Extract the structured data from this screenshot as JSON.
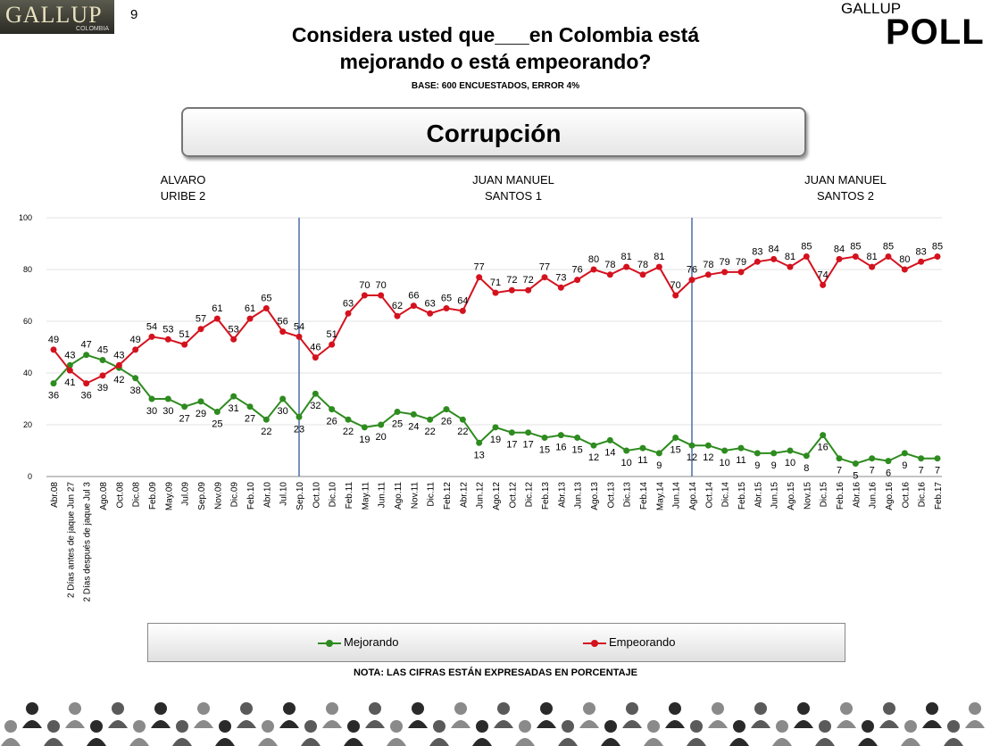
{
  "header": {
    "logo_left": "GALLUP",
    "logo_left_sub": "COLOMBIA",
    "page_number": "9",
    "title_line1": "Considera usted que___en Colombia está",
    "title_line2": "mejorando o está empeorando?",
    "base": "BASE: 600 ENCUESTADOS, ERROR 4%",
    "logo_right_top": "GALLUP",
    "logo_right_main": "POLL"
  },
  "topic": "Corrupción",
  "periods": [
    {
      "line1": "ALVARO",
      "line2": "URIBE 2"
    },
    {
      "line1": "JUAN MANUEL",
      "line2": "SANTOS 1"
    },
    {
      "line1": "JUAN MANUEL",
      "line2": "SANTOS 2"
    }
  ],
  "chart_data": {
    "type": "line",
    "title": "Corrupción",
    "ylim": [
      0,
      100
    ],
    "yticks": [
      0,
      20,
      40,
      60,
      80,
      100
    ],
    "categories": [
      "Abr.08",
      "2 Días antes de jaque Jun 27",
      "2 Días después de jaque Jul 3",
      "Ago.08",
      "Oct.08",
      "Dic.08",
      "Feb.09",
      "May.09",
      "Jul.09",
      "Sep.09",
      "Nov.09",
      "Dic.09",
      "Feb.10",
      "Abr.10",
      "Jul.10",
      "Sep.10",
      "Oct.10",
      "Dic.10",
      "Feb.11",
      "May.11",
      "Jun.11",
      "Ago.11",
      "Nov.11",
      "Dic.11",
      "Feb.12",
      "Abr.12",
      "Jun.12",
      "Ago.12",
      "Oct.12",
      "Dic.12",
      "Feb.13",
      "Abr.13",
      "Jun.13",
      "Ago.13",
      "Oct.13",
      "Dic.13",
      "Feb.14",
      "May.14",
      "Jun.14",
      "Ago.14",
      "Oct.14",
      "Dic.14",
      "Feb.15",
      "Abr.15",
      "Jun.15",
      "Ago.15",
      "Nov.15",
      "Dic.15",
      "Feb.16",
      "Abr.16",
      "Jun.16",
      "Ago.16",
      "Oct.16",
      "Dic.16",
      "Feb.17"
    ],
    "series": [
      {
        "name": "Mejorando",
        "color": "#2e8b1f",
        "values": [
          36,
          43,
          47,
          45,
          42,
          38,
          30,
          30,
          27,
          29,
          25,
          31,
          27,
          22,
          30,
          23,
          32,
          26,
          22,
          19,
          20,
          25,
          24,
          22,
          26,
          22,
          13,
          19,
          17,
          17,
          15,
          16,
          15,
          12,
          14,
          10,
          11,
          9,
          15,
          12,
          12,
          10,
          11,
          9,
          9,
          10,
          8,
          16,
          7,
          5,
          7,
          6,
          9,
          7,
          7
        ]
      },
      {
        "name": "Empeorando",
        "color": "#d4121e",
        "values": [
          49,
          41,
          36,
          39,
          43,
          49,
          54,
          53,
          51,
          57,
          61,
          53,
          61,
          65,
          56,
          54,
          46,
          51,
          63,
          70,
          70,
          62,
          66,
          63,
          65,
          64,
          77,
          71,
          72,
          72,
          77,
          73,
          76,
          80,
          78,
          81,
          78,
          81,
          70,
          76,
          78,
          79,
          79,
          83,
          84,
          81,
          85,
          74,
          84,
          85,
          81,
          85,
          80,
          83,
          85
        ]
      }
    ],
    "vertical_markers": [
      "Sep.10",
      "Ago.14"
    ]
  },
  "legend": {
    "item1": "Mejorando",
    "item2": "Empeorando"
  },
  "note": "NOTA: LAS CIFRAS ESTÁN EXPRESADAS EN PORCENTAJE"
}
